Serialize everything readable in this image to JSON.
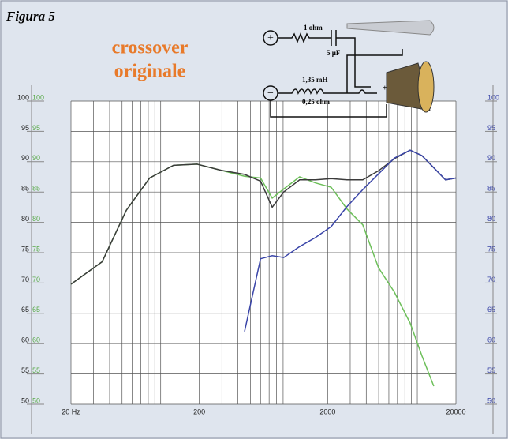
{
  "chart_data": {
    "type": "line",
    "figure_label": "Figura 5",
    "title_lines": [
      "crossover",
      "originale"
    ],
    "annotations": {
      "resistor": "1 ohm",
      "capacitor": "5 µF",
      "inductor": "1,35 mH",
      "inductor_resistance": "0,25 ohm",
      "plus": "+",
      "minus": "−",
      "speaker_plus": "+"
    },
    "x": [
      20,
      35,
      54,
      82,
      126,
      192,
      294,
      450,
      600,
      740,
      910,
      1210,
      1610,
      2130,
      2830,
      3760,
      4990,
      6620,
      8790,
      10870,
      13440,
      16600,
      20000
    ],
    "series": [
      {
        "color": "#6dbf5a",
        "values": [
          69.8,
          73.5,
          82,
          87.3,
          89.4,
          89.6,
          88.6,
          87.6,
          87.3,
          84,
          85.5,
          87.5,
          86.5,
          85.8,
          82.2,
          79.6,
          72.5,
          68.5,
          63.4,
          58,
          53,
          null,
          null
        ]
      },
      {
        "color": "#3b3b3b",
        "values": [
          69.8,
          73.5,
          82,
          87.3,
          89.4,
          89.6,
          88.6,
          87.9,
          86.8,
          82.5,
          85,
          87,
          87,
          87.2,
          87,
          87,
          88.5,
          90.5,
          91.9,
          91,
          89,
          87,
          87.3
        ]
      },
      {
        "color": "#3a45a8",
        "values": [
          null,
          null,
          null,
          null,
          null,
          null,
          null,
          62,
          74,
          74.5,
          74.2,
          76,
          77.5,
          79.3,
          82.6,
          85.4,
          88,
          90.6,
          91.9,
          91,
          89,
          87,
          87.3
        ]
      }
    ],
    "log_x": true,
    "xlim": [
      20,
      20000
    ],
    "xticks": [
      {
        "value": 20,
        "label": "20 Hz"
      },
      200,
      2000,
      20000
    ],
    "xgrid": [
      20,
      30,
      40,
      50,
      60,
      70,
      80,
      90,
      100,
      200,
      300,
      400,
      500,
      600,
      700,
      800,
      900,
      1000,
      2000,
      3000,
      4000,
      5000,
      6000,
      7000,
      8000,
      9000,
      10000,
      20000
    ],
    "ylim": [
      50,
      100
    ],
    "yticks": [
      50,
      55,
      60,
      65,
      70,
      75,
      80,
      85,
      90,
      95,
      100
    ],
    "grid": true
  }
}
